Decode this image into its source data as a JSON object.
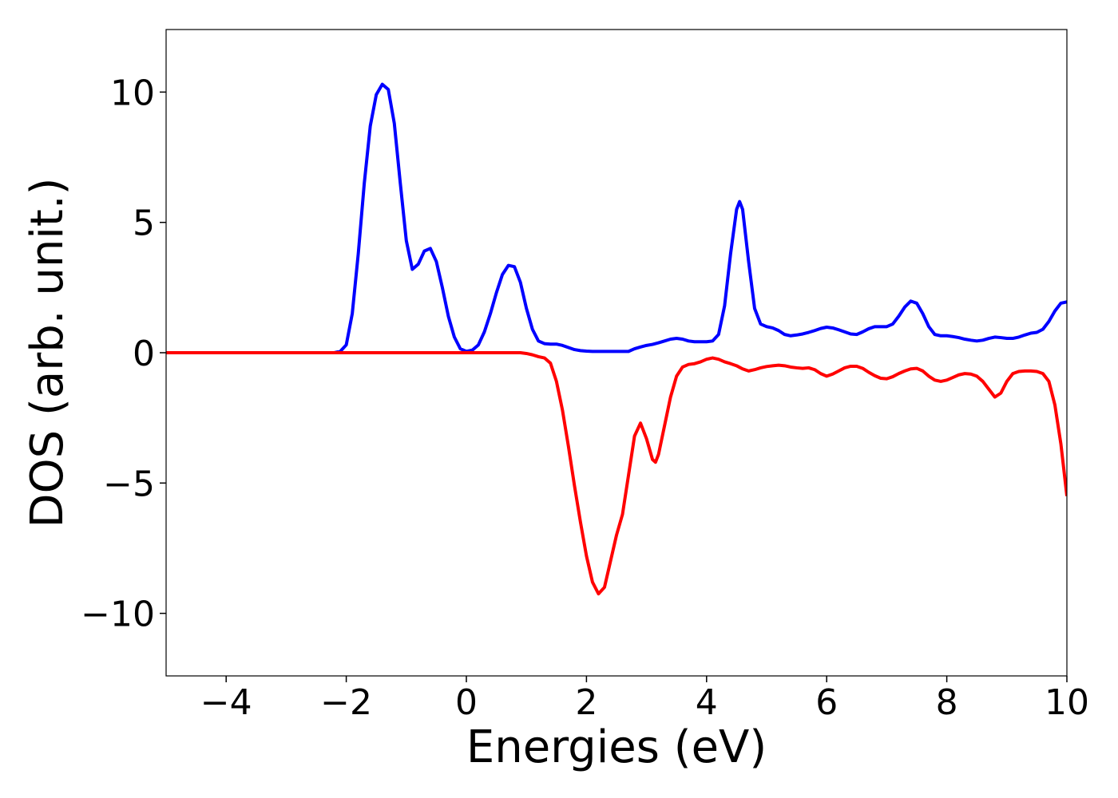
{
  "chart_data": {
    "type": "line",
    "xlabel": "Energies (eV)",
    "ylabel": "DOS (arb. unit.)",
    "x": [
      -5,
      -4,
      -3,
      -2.5,
      -2.2,
      -2.1,
      -2,
      -1.9,
      -1.8,
      -1.7,
      -1.6,
      -1.5,
      -1.4,
      -1.3,
      -1.2,
      -1.1,
      -1,
      -0.9,
      -0.8,
      -0.7,
      -0.6,
      -0.5,
      -0.4,
      -0.3,
      -0.2,
      -0.1,
      0,
      0.1,
      0.2,
      0.3,
      0.4,
      0.5,
      0.6,
      0.7,
      0.8,
      0.9,
      1,
      1.1,
      1.2,
      1.3,
      1.4,
      1.5,
      1.6,
      1.7,
      1.8,
      1.9,
      2,
      2.1,
      2.2,
      2.3,
      2.4,
      2.5,
      2.6,
      2.7,
      2.8,
      2.9,
      3,
      3.1,
      3.15,
      3.2,
      3.3,
      3.4,
      3.5,
      3.6,
      3.7,
      3.8,
      3.9,
      4,
      4.1,
      4.2,
      4.3,
      4.4,
      4.5,
      4.55,
      4.6,
      4.7,
      4.8,
      4.9,
      5,
      5.1,
      5.2,
      5.3,
      5.4,
      5.5,
      5.6,
      5.7,
      5.8,
      5.9,
      6,
      6.1,
      6.2,
      6.3,
      6.4,
      6.5,
      6.6,
      6.7,
      6.8,
      6.9,
      7,
      7.1,
      7.2,
      7.3,
      7.4,
      7.5,
      7.6,
      7.7,
      7.8,
      7.9,
      8,
      8.1,
      8.2,
      8.3,
      8.4,
      8.5,
      8.6,
      8.7,
      8.8,
      8.9,
      9,
      9.1,
      9.2,
      9.3,
      9.4,
      9.5,
      9.6,
      9.7,
      9.8,
      9.9,
      10
    ],
    "series": [
      {
        "color": "#0000ff",
        "values": [
          0,
          0,
          0,
          0,
          0,
          0.05,
          0.3,
          1.5,
          3.8,
          6.5,
          8.7,
          9.9,
          10.3,
          10.1,
          8.8,
          6.5,
          4.3,
          3.2,
          3.4,
          3.9,
          4.0,
          3.5,
          2.5,
          1.4,
          0.6,
          0.15,
          0.05,
          0.1,
          0.3,
          0.8,
          1.5,
          2.3,
          3.0,
          3.35,
          3.3,
          2.7,
          1.7,
          0.9,
          0.45,
          0.35,
          0.33,
          0.33,
          0.28,
          0.2,
          0.12,
          0.08,
          0.06,
          0.05,
          0.05,
          0.05,
          0.05,
          0.05,
          0.05,
          0.05,
          0.15,
          0.22,
          0.28,
          0.32,
          0.35,
          0.38,
          0.45,
          0.52,
          0.55,
          0.52,
          0.45,
          0.42,
          0.42,
          0.42,
          0.45,
          0.7,
          1.8,
          3.8,
          5.5,
          5.8,
          5.5,
          3.5,
          1.7,
          1.1,
          1.0,
          0.95,
          0.85,
          0.7,
          0.65,
          0.68,
          0.72,
          0.78,
          0.85,
          0.93,
          0.98,
          0.95,
          0.88,
          0.8,
          0.72,
          0.7,
          0.8,
          0.92,
          1.0,
          1.0,
          1.0,
          1.1,
          1.4,
          1.75,
          1.98,
          1.9,
          1.5,
          1.0,
          0.7,
          0.65,
          0.65,
          0.62,
          0.58,
          0.52,
          0.48,
          0.45,
          0.48,
          0.55,
          0.6,
          0.58,
          0.55,
          0.55,
          0.6,
          0.68,
          0.75,
          0.78,
          0.9,
          1.2,
          1.6,
          1.9,
          1.95
        ]
      },
      {
        "color": "#ff0000",
        "values": [
          0,
          0,
          0,
          0,
          0,
          0,
          0,
          0,
          0,
          0,
          0,
          0,
          0,
          0,
          0,
          0,
          0,
          0,
          0,
          0,
          0,
          0,
          0,
          0,
          0,
          0,
          0,
          0,
          0,
          0,
          0,
          0,
          0,
          0,
          0,
          0,
          -0.03,
          -0.08,
          -0.15,
          -0.2,
          -0.4,
          -1.1,
          -2.2,
          -3.6,
          -5.1,
          -6.5,
          -7.8,
          -8.8,
          -9.25,
          -9.0,
          -8.0,
          -7.0,
          -6.2,
          -4.7,
          -3.2,
          -2.7,
          -3.3,
          -4.1,
          -4.2,
          -3.9,
          -2.8,
          -1.7,
          -0.9,
          -0.55,
          -0.45,
          -0.42,
          -0.35,
          -0.25,
          -0.2,
          -0.25,
          -0.35,
          -0.42,
          -0.5,
          -0.56,
          -0.62,
          -0.7,
          -0.65,
          -0.58,
          -0.53,
          -0.5,
          -0.48,
          -0.5,
          -0.55,
          -0.58,
          -0.6,
          -0.58,
          -0.65,
          -0.8,
          -0.9,
          -0.82,
          -0.7,
          -0.58,
          -0.52,
          -0.52,
          -0.6,
          -0.75,
          -0.88,
          -0.98,
          -1.0,
          -0.92,
          -0.8,
          -0.7,
          -0.62,
          -0.6,
          -0.7,
          -0.9,
          -1.05,
          -1.1,
          -1.05,
          -0.95,
          -0.85,
          -0.8,
          -0.82,
          -0.9,
          -1.1,
          -1.4,
          -1.7,
          -1.55,
          -1.1,
          -0.8,
          -0.72,
          -0.7,
          -0.7,
          -0.72,
          -0.8,
          -1.1,
          -2.0,
          -3.5,
          -5.5
        ]
      }
    ],
    "xlim": [
      -5,
      10
    ],
    "xticks": [
      {
        "value": -4,
        "label": "−4"
      },
      {
        "value": -2,
        "label": "−2"
      },
      0,
      2,
      4,
      6,
      8,
      10
    ],
    "ylim": [
      -12.4,
      12.4
    ],
    "yticks": [
      {
        "value": -10,
        "label": "−10"
      },
      {
        "value": -5,
        "label": "−5"
      },
      0,
      5,
      10
    ],
    "grid": false
  }
}
